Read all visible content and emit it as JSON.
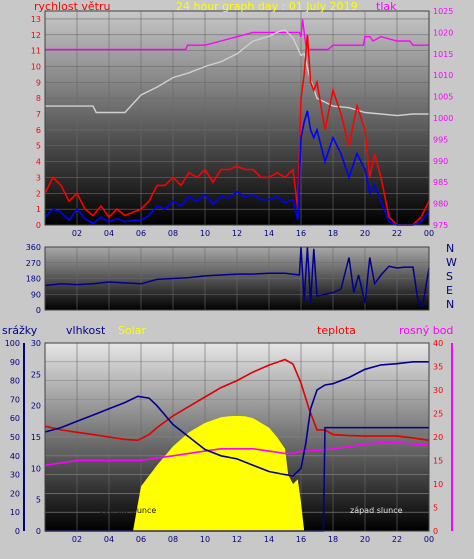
{
  "chart_data": [
    {
      "type": "line",
      "title": "24 hour graph day : 01 July 2019",
      "left_label": "rychlost větru",
      "right_label": "tlak",
      "x_ticks": [
        "02",
        "04",
        "06",
        "08",
        "10",
        "12",
        "14",
        "16",
        "18",
        "20",
        "22",
        "00"
      ],
      "y_left_ticks": [
        "0",
        "1",
        "2",
        "3",
        "4",
        "5",
        "6",
        "7",
        "8",
        "9",
        "10",
        "11",
        "12",
        "13"
      ],
      "y_right_ticks": [
        "975",
        "980",
        "985",
        "990",
        "995",
        "1000",
        "1005",
        "1010",
        "1015",
        "1020",
        "1025"
      ],
      "ylim_left": [
        0,
        13.5
      ],
      "ylim_right": [
        975,
        1025
      ],
      "series": [
        {
          "name": "tlak",
          "color": "#ff00ff",
          "axis": "right",
          "x": [
            0,
            8.8,
            8.9,
            10,
            11,
            12,
            13,
            14,
            15,
            15.9,
            16,
            16.1,
            16.3,
            16.5,
            17,
            17.7,
            18,
            19,
            19.9,
            20,
            20.3,
            20.5,
            21,
            22,
            22.8,
            23,
            24
          ],
          "y": [
            1016,
            1016,
            1017,
            1017,
            1018,
            1019,
            1020,
            1020,
            1020,
            1020,
            1019,
            1023,
            1017,
            1016,
            1016,
            1016,
            1017,
            1017,
            1017,
            1019,
            1019,
            1018,
            1019,
            1018,
            1018,
            1017,
            1017
          ]
        },
        {
          "name": "",
          "color": "#d0d0d0",
          "axis": "left",
          "x": [
            0,
            2,
            3,
            3.2,
            5,
            6,
            7,
            8,
            9,
            10,
            11,
            12,
            13,
            14,
            14.6,
            15,
            15.5,
            16,
            16.2,
            16.5,
            17,
            18,
            19,
            20,
            21,
            22,
            23,
            24
          ],
          "y": [
            7.5,
            7.5,
            7.5,
            7.1,
            7.1,
            8.2,
            8.7,
            9.3,
            9.6,
            10.0,
            10.3,
            10.8,
            11.6,
            11.9,
            12.2,
            12.3,
            11.8,
            10.7,
            10.8,
            9.5,
            8.0,
            7.5,
            7.4,
            7.1,
            7.0,
            6.9,
            7.0,
            7.0
          ]
        },
        {
          "name": "",
          "color": "#ff0000",
          "axis": "left",
          "x": [
            0,
            0.5,
            1,
            1.5,
            2,
            2.5,
            3,
            3.5,
            4,
            4.5,
            5,
            5.5,
            6,
            6.5,
            7,
            7.5,
            8,
            8.5,
            9,
            9.5,
            10,
            10.5,
            11,
            11.5,
            12,
            12.5,
            13,
            13.5,
            14,
            14.5,
            15,
            15.5,
            15.8,
            16,
            16.2,
            16.4,
            16.6,
            16.8,
            17,
            17.5,
            18,
            18.5,
            19,
            19.5,
            20,
            20.3,
            20.6,
            21,
            21.5,
            22,
            22.5,
            23,
            23.5,
            24
          ],
          "y": [
            2.0,
            3.0,
            2.5,
            1.5,
            2.0,
            1.0,
            0.6,
            1.2,
            0.5,
            1.0,
            0.6,
            0.8,
            1.0,
            1.5,
            2.5,
            2.5,
            3.0,
            2.5,
            3.3,
            3.0,
            3.5,
            2.7,
            3.5,
            3.5,
            3.7,
            3.5,
            3.5,
            3.0,
            3.0,
            3.3,
            3.0,
            3.5,
            1.0,
            8.0,
            9.5,
            12.0,
            9.0,
            8.5,
            9.0,
            6.0,
            8.5,
            7.0,
            5.0,
            7.5,
            6.0,
            3.0,
            4.5,
            3.0,
            0.5,
            0.0,
            0.0,
            0.0,
            0.5,
            1.5
          ]
        },
        {
          "name": "",
          "color": "#0000ff",
          "axis": "left",
          "x": [
            0,
            0.5,
            1,
            1.5,
            2,
            2.5,
            3,
            3.5,
            4,
            4.5,
            5,
            5.5,
            6,
            6.5,
            7,
            7.5,
            8,
            8.5,
            9,
            9.5,
            10,
            10.5,
            11,
            11.5,
            12,
            12.5,
            13,
            13.5,
            14,
            14.5,
            15,
            15.5,
            15.8,
            16,
            16.2,
            16.4,
            16.6,
            16.8,
            17,
            17.5,
            18,
            18.5,
            19,
            19.5,
            20,
            20.3,
            20.6,
            21,
            21.5,
            22,
            22.5,
            23,
            23.5,
            24
          ],
          "y": [
            0.5,
            1.0,
            0.8,
            0.3,
            1.0,
            0.4,
            0.1,
            0.5,
            0.2,
            0.4,
            0.2,
            0.3,
            0.3,
            0.6,
            1.2,
            1.0,
            1.5,
            1.2,
            1.8,
            1.5,
            1.9,
            1.3,
            1.8,
            1.7,
            2.1,
            1.8,
            1.9,
            1.6,
            1.6,
            1.8,
            1.4,
            1.6,
            0.3,
            5.5,
            6.5,
            7.2,
            6.0,
            5.5,
            6.0,
            4.0,
            5.5,
            4.5,
            3.0,
            4.5,
            3.5,
            2.0,
            2.5,
            1.5,
            0.2,
            0.0,
            0.0,
            0.0,
            0.2,
            0.8
          ]
        }
      ]
    },
    {
      "type": "line",
      "y_left_ticks": [
        "0",
        "90",
        "180",
        "270",
        "360"
      ],
      "ylim": [
        0,
        360
      ],
      "direction_labels": [
        "N",
        "W",
        "S",
        "E",
        "N"
      ],
      "series": [
        {
          "name": "",
          "color": "#000090",
          "x": [
            0,
            1,
            2,
            3,
            4,
            5,
            6,
            7,
            8,
            9,
            10,
            11,
            12,
            13,
            14,
            15,
            15.9,
            16,
            16.2,
            16.4,
            16.6,
            16.8,
            17,
            17.5,
            18,
            18.5,
            19,
            19.3,
            19.6,
            20,
            20.3,
            20.6,
            21,
            21.5,
            22,
            22.5,
            23,
            23.3,
            23.6,
            24
          ],
          "y": [
            140,
            150,
            145,
            150,
            160,
            155,
            150,
            175,
            180,
            185,
            195,
            200,
            205,
            205,
            210,
            210,
            200,
            360,
            50,
            360,
            40,
            350,
            80,
            90,
            100,
            120,
            300,
            100,
            200,
            40,
            300,
            150,
            200,
            250,
            240,
            245,
            245,
            60,
            20,
            240
          ]
        }
      ]
    },
    {
      "type": "line",
      "labels": [
        "srážky",
        "vlhkost",
        "Solar",
        "teplota",
        "rosný bod"
      ],
      "annotations": [
        "východ slunce",
        "západ slunce"
      ],
      "y_rain_ticks": [
        "0",
        "10",
        "20",
        "30",
        "40",
        "50",
        "60",
        "70",
        "80",
        "90",
        "100"
      ],
      "y_hum_ticks": [
        "0",
        "5",
        "10",
        "15",
        "20",
        "25",
        "30"
      ],
      "y_temp_ticks": [
        "0",
        "5",
        "10",
        "15",
        "20",
        "25",
        "30",
        "35",
        "40"
      ],
      "ylim_rain": [
        0,
        100
      ],
      "ylim_hum": [
        0,
        30
      ],
      "ylim_temp": [
        0,
        40
      ],
      "series": [
        {
          "name": "Solar",
          "color": "#ffff00",
          "axis": "temp",
          "x": [
            5.5,
            6,
            7,
            8,
            9,
            10,
            11,
            11.5,
            12,
            12.5,
            13,
            14,
            14.5,
            15,
            15.2,
            15.5,
            15.8,
            16,
            16.2
          ],
          "y": [
            0,
            9.5,
            14,
            18,
            21,
            23,
            24.2,
            24.4,
            24.5,
            24.4,
            24,
            22,
            20,
            17.5,
            12,
            10,
            11,
            6,
            0
          ]
        },
        {
          "name": "teplota",
          "color": "#e00000",
          "axis": "temp",
          "x": [
            0,
            1,
            2,
            3,
            4,
            5,
            5.8,
            6.5,
            7,
            8,
            9,
            10,
            11,
            12,
            13,
            14,
            15,
            15.5,
            16,
            16.5,
            17,
            17.5,
            18,
            19,
            20,
            21,
            22,
            23,
            24
          ],
          "y": [
            22.3,
            21.5,
            21,
            20.5,
            20,
            19.5,
            19.3,
            20.5,
            22,
            24.5,
            26.5,
            28.5,
            30.5,
            32,
            33.8,
            35.3,
            36.5,
            35.5,
            31.5,
            26,
            21.5,
            21.5,
            20.5,
            20.3,
            20.2,
            20.2,
            20.2,
            19.8,
            19.3
          ]
        },
        {
          "name": "rosný bod",
          "color": "#ff00ff",
          "axis": "temp",
          "x": [
            0,
            1,
            2,
            3,
            4,
            5,
            6,
            7,
            8,
            9,
            10,
            11,
            12,
            13,
            14,
            15,
            15.5,
            16,
            16.5,
            17,
            17.5,
            18,
            19,
            20,
            21,
            22,
            23,
            24
          ],
          "y": [
            14,
            14.5,
            15,
            15,
            15,
            15,
            15,
            15.5,
            16,
            16.5,
            17,
            17.5,
            17.5,
            17.5,
            17,
            16.5,
            16.5,
            17,
            17,
            17.2,
            17.3,
            17.5,
            18,
            18.5,
            18.8,
            18.8,
            18.5,
            18.3
          ]
        },
        {
          "name": "vlhkost",
          "color": "#000090",
          "axis": "hum",
          "x": [
            0,
            1,
            2,
            3,
            4,
            5,
            5.8,
            6.5,
            7,
            7.5,
            8,
            9,
            10,
            11,
            12,
            13,
            14,
            15,
            15.5,
            16,
            16.3,
            16.6,
            17,
            17.5,
            18,
            19,
            20,
            21,
            22,
            23,
            24
          ],
          "y": [
            15.8,
            16.5,
            17.5,
            18.5,
            19.5,
            20.5,
            21.5,
            21.2,
            20,
            18.5,
            17,
            15,
            13,
            12,
            11.5,
            10.5,
            9.5,
            9,
            8.8,
            10,
            14,
            19.5,
            22.5,
            23.3,
            23.5,
            24.5,
            25.8,
            26.5,
            26.7,
            27,
            27
          ]
        },
        {
          "name": "srážky",
          "color": "#000090",
          "axis": "rain",
          "x": [
            0,
            15.9,
            16,
            17.4,
            17.5,
            22.5,
            22.6,
            24
          ],
          "y": [
            0,
            0,
            0,
            0,
            55,
            55,
            55,
            55
          ]
        }
      ]
    }
  ]
}
